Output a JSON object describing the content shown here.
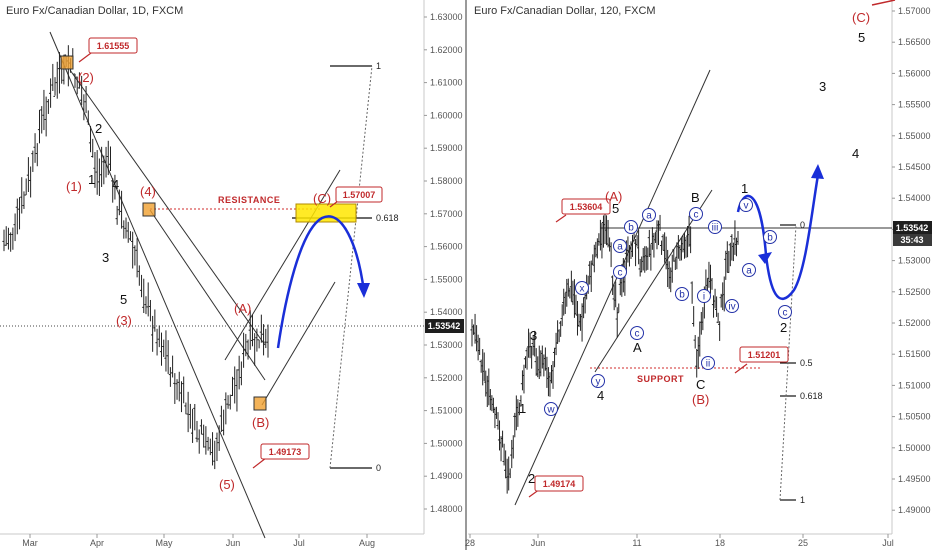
{
  "chart_data": [
    {
      "type": "candlestick",
      "title": "Euro Fx/Canadian Dollar, 1D, FXCM",
      "x_ticks": [
        "Mar",
        "Apr",
        "May",
        "Jun",
        "Jul",
        "Aug"
      ],
      "y_ticks": [
        "1.63000",
        "1.62000",
        "1.61000",
        "1.60000",
        "1.59000",
        "1.58000",
        "1.57000",
        "1.56000",
        "1.55000",
        "1.54000",
        "1.53000",
        "1.52000",
        "1.51000",
        "1.50000",
        "1.49000",
        "1.48000"
      ],
      "ylim": [
        1.475,
        1.633
      ],
      "last_price": "1.53542",
      "callouts": [
        "1.61555",
        "1.57007",
        "1.49173"
      ],
      "zone_label": "RESISTANCE",
      "wave_labels_red": [
        "(2)",
        "(1)",
        "(4)",
        "(3)",
        "(A)",
        "(B)",
        "(5)",
        "(C)"
      ],
      "wave_labels_black": [
        "2",
        "1",
        "4",
        "3",
        "5"
      ],
      "fib_labels": [
        "1",
        "0.618",
        "0"
      ]
    },
    {
      "type": "candlestick",
      "title": "Euro Fx/Canadian Dollar, 120, FXCM",
      "x_ticks": [
        "28",
        "Jun",
        "11",
        "18",
        "25",
        "Jul"
      ],
      "y_ticks": [
        "1.57000",
        "1.56500",
        "1.56000",
        "1.55500",
        "1.55000",
        "1.54500",
        "1.54000",
        "1.53500",
        "1.53000",
        "1.52500",
        "1.52000",
        "1.51500",
        "1.51000",
        "1.50500",
        "1.50000",
        "1.49500",
        "1.49000"
      ],
      "ylim": [
        1.4875,
        1.5735
      ],
      "last_price": "1.53542",
      "timer": "35:43",
      "callouts": [
        "1.53604",
        "1.51201",
        "1.49174"
      ],
      "zone_label": "SUPPORT",
      "wave_labels_red": [
        "(A)",
        "(B)",
        "(C)"
      ],
      "wave_labels_black": [
        "1",
        "2",
        "3",
        "4",
        "5",
        "A",
        "B",
        "C",
        "1",
        "2",
        "3",
        "4",
        "5"
      ],
      "wave_labels_circled": [
        "w",
        "x",
        "y",
        "a",
        "b",
        "c",
        "a",
        "b",
        "c",
        "i",
        "ii",
        "iii",
        "iv",
        "v",
        "a",
        "b",
        "c"
      ],
      "fib_labels": [
        "0",
        "0.5",
        "0.618",
        "1"
      ]
    }
  ],
  "colors": {
    "bullish_line": "#1a2fd8",
    "label_red": "#c0292b",
    "resistance_zone": "#ffe600",
    "pivot_box": "#f0a030",
    "price_badge": "#1e1e1e",
    "circle_label": "#2432a8"
  }
}
